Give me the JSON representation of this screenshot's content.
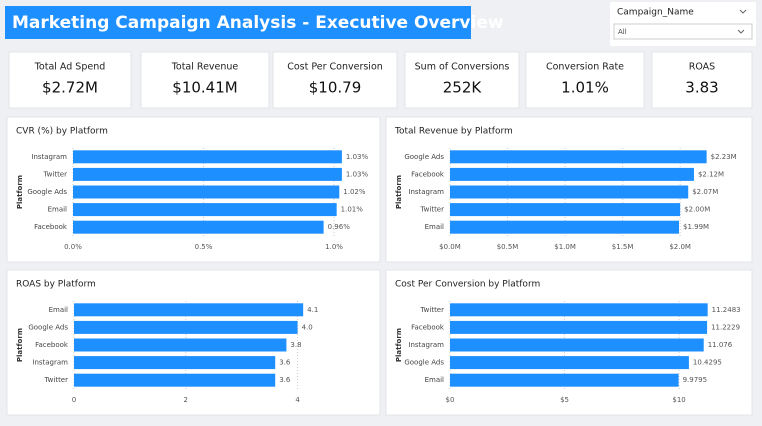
{
  "title": "Marketing Campaign Analysis - Executive Overview",
  "slicer": {
    "label": "Campaign_Name",
    "value": "All"
  },
  "kpis": [
    {
      "label": "Total Ad Spend",
      "value": "$2.72M"
    },
    {
      "label": "Total Revenue",
      "value": "$10.41M"
    },
    {
      "label": "Cost Per Conversion",
      "value": "$10.79"
    },
    {
      "label": "Sum of Conversions",
      "value": "252K"
    },
    {
      "label": "Conversion Rate",
      "value": "1.01%"
    },
    {
      "label": "ROAS",
      "value": "3.83"
    }
  ],
  "chart_data": [
    {
      "type": "bar",
      "orientation": "horizontal",
      "title": "CVR (%) by Platform",
      "y_label": "Platform",
      "categories": [
        "Instagram",
        "Twitter",
        "Google Ads",
        "Email",
        "Facebook"
      ],
      "values": [
        1.03,
        1.03,
        1.02,
        1.01,
        0.96
      ],
      "value_labels": [
        "1.03%",
        "1.03%",
        "1.02%",
        "1.01%",
        "0.96%"
      ],
      "color": "#1e8fff",
      "xlim": [
        0,
        1.13
      ],
      "xticks": [
        {
          "value": 0,
          "label": "0.0%"
        },
        {
          "value": 0.5,
          "label": "0.5%"
        },
        {
          "value": 1,
          "label": "1.0%"
        }
      ],
      "grid": true
    },
    {
      "type": "bar",
      "orientation": "horizontal",
      "title": "Total Revenue by Platform",
      "y_label": "Platform",
      "categories": [
        "Google Ads",
        "Facebook",
        "Instagram",
        "Twitter",
        "Email"
      ],
      "values": [
        2230000,
        2120000,
        2070000,
        2000000,
        1990000
      ],
      "value_labels": [
        "$2.23M",
        "$2.12M",
        "$2.07M",
        "$2.00M",
        "$1.99M"
      ],
      "color": "#1e8fff",
      "xlim": [
        0,
        2520000
      ],
      "xticks": [
        {
          "value": 0,
          "label": "$0.0M"
        },
        {
          "value": 500000,
          "label": "$0.5M"
        },
        {
          "value": 1000000,
          "label": "$1.0M"
        },
        {
          "value": 1500000,
          "label": "$1.5M"
        },
        {
          "value": 2000000,
          "label": "$2.0M"
        }
      ],
      "grid": true
    },
    {
      "type": "bar",
      "orientation": "horizontal",
      "title": "ROAS by Platform",
      "y_label": "Platform",
      "categories": [
        "Email",
        "Google Ads",
        "Facebook",
        "Instagram",
        "Twitter"
      ],
      "values": [
        4.1,
        4.0,
        3.8,
        3.6,
        3.6
      ],
      "value_labels": [
        "4.1",
        "4.0",
        "3.8",
        "3.6",
        "3.6"
      ],
      "color": "#1e8fff",
      "xlim": [
        0,
        5.26
      ],
      "xticks": [
        0,
        2,
        4
      ],
      "grid": true
    },
    {
      "type": "bar",
      "orientation": "horizontal",
      "title": "Cost Per Conversion by Platform",
      "y_label": "Platform",
      "categories": [
        "Twitter",
        "Facebook",
        "Instagram",
        "Google Ads",
        "Email"
      ],
      "values": [
        11.2483,
        11.2229,
        11.076,
        10.4295,
        9.9795
      ],
      "color": "#1e8fff",
      "xlim": [
        0,
        12.66
      ],
      "xticks": [
        {
          "value": 0,
          "label": "$0"
        },
        {
          "value": 5,
          "label": "$5"
        },
        {
          "value": 10,
          "label": "$10"
        }
      ],
      "grid": true
    }
  ]
}
